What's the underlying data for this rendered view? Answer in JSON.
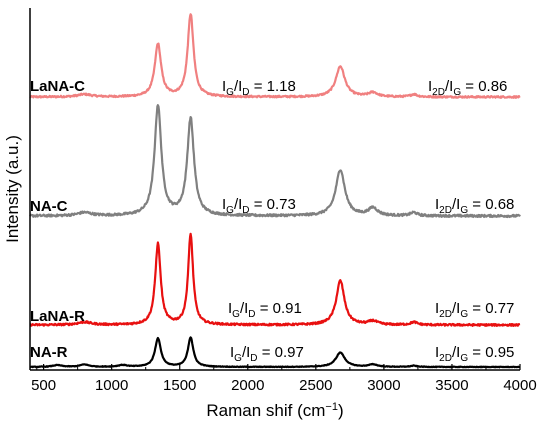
{
  "chart_data": {
    "type": "line",
    "xlabel": "Raman shif (cm",
    "xlabel_unit_sup": "−1",
    "xlabel_close": ")",
    "ylabel": "Intensity (a.u.)",
    "xlim": [
      400,
      4000
    ],
    "x_ticks": [
      500,
      1000,
      1500,
      2000,
      2500,
      3000,
      3500,
      4000
    ],
    "x_tick_labels": [
      "500",
      "1000",
      "1500",
      "2000",
      "2500",
      "3000",
      "3500",
      "4000"
    ],
    "y_ticks_shown": false,
    "grid": false,
    "series": [
      {
        "name": "LaNA-C",
        "color": "#f08080",
        "baseline_rel": 0.0,
        "peaks": [
          {
            "x": 1340,
            "height": 0.62,
            "width": 28
          },
          {
            "x": 1580,
            "height": 0.97,
            "width": 26
          },
          {
            "x": 2680,
            "height": 0.36,
            "width": 40
          },
          {
            "x": 2920,
            "height": 0.05,
            "width": 40
          },
          {
            "x": 3220,
            "height": 0.03,
            "width": 30
          },
          {
            "x": 800,
            "height": 0.03,
            "width": 60
          }
        ],
        "ratio_d": {
          "main": "I",
          "sub1": "G",
          "mid": "/I",
          "sub2": "D",
          "value": " = 1.18"
        },
        "ratio_2d": {
          "main": "I",
          "sub1": "2D",
          "mid": "/I",
          "sub2": "G",
          "value": " = 0.86"
        }
      },
      {
        "name": "NA-C",
        "color": "#808080",
        "peaks": [
          {
            "x": 1340,
            "height": 1.0,
            "width": 30
          },
          {
            "x": 1580,
            "height": 0.88,
            "width": 30
          },
          {
            "x": 2680,
            "height": 0.42,
            "width": 40
          },
          {
            "x": 2920,
            "height": 0.07,
            "width": 40
          },
          {
            "x": 3220,
            "height": 0.03,
            "width": 30
          },
          {
            "x": 800,
            "height": 0.03,
            "width": 60
          }
        ],
        "ratio_d": {
          "main": "I",
          "sub1": "G",
          "mid": "/I",
          "sub2": "D",
          "value": " = 0.73"
        },
        "ratio_2d": {
          "main": "I",
          "sub1": "2D",
          "mid": "/I",
          "sub2": "G",
          "value": " = 0.68"
        }
      },
      {
        "name": "LaNA-R",
        "color": "#e81010",
        "peaks": [
          {
            "x": 1340,
            "height": 0.88,
            "width": 24
          },
          {
            "x": 1580,
            "height": 0.98,
            "width": 22
          },
          {
            "x": 2680,
            "height": 0.48,
            "width": 36
          },
          {
            "x": 2920,
            "height": 0.04,
            "width": 40
          },
          {
            "x": 3220,
            "height": 0.03,
            "width": 30
          },
          {
            "x": 800,
            "height": 0.03,
            "width": 60
          }
        ],
        "ratio_d": {
          "main": "I",
          "sub1": "G",
          "mid": "/I",
          "sub2": "D",
          "value": " = 0.91"
        },
        "ratio_2d": {
          "main": "I",
          "sub1": "2D",
          "mid": "/I",
          "sub2": "G",
          "value": " = 0.77"
        }
      },
      {
        "name": "NA-R",
        "color": "#000000",
        "peaks": [
          {
            "x": 1340,
            "height": 0.95,
            "width": 26
          },
          {
            "x": 1580,
            "height": 0.98,
            "width": 24
          },
          {
            "x": 2680,
            "height": 0.48,
            "width": 40
          },
          {
            "x": 2920,
            "height": 0.08,
            "width": 40
          },
          {
            "x": 3220,
            "height": 0.04,
            "width": 30
          },
          {
            "x": 600,
            "height": 0.06,
            "width": 40
          },
          {
            "x": 800,
            "height": 0.08,
            "width": 40
          },
          {
            "x": 1080,
            "height": 0.06,
            "width": 40
          }
        ],
        "ratio_d": {
          "main": "I",
          "sub1": "G",
          "mid": "/I",
          "sub2": "D",
          "value": " = 0.97"
        },
        "ratio_2d": {
          "main": "I",
          "sub1": "2D",
          "mid": "/I",
          "sub2": "G",
          "value": " = 0.95"
        }
      }
    ]
  }
}
